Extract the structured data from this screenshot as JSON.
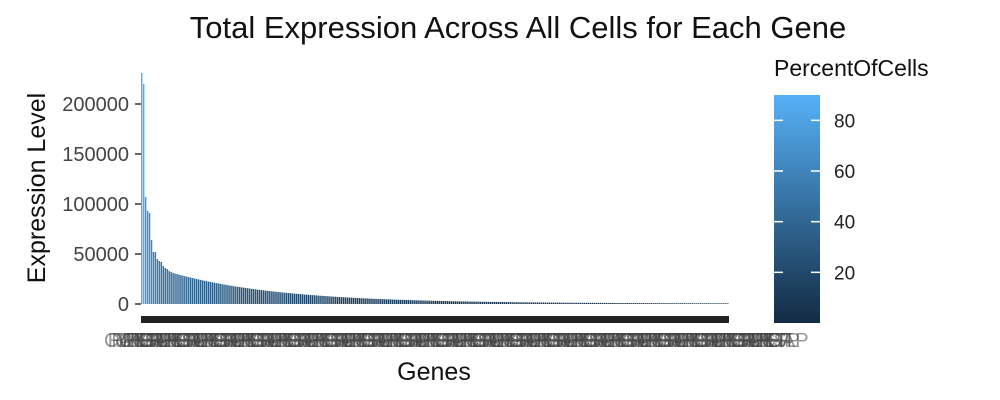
{
  "chart_data": {
    "type": "bar",
    "title": "Total Expression Across All Cells for Each Gene",
    "xlabel": "Genes",
    "ylabel": "Expression Level",
    "ylim": [
      0,
      232000
    ],
    "y_ticks": [
      0,
      50000,
      100000,
      150000,
      200000
    ],
    "y_tick_labels": [
      "0",
      "50000",
      "100000",
      "150000",
      "200000"
    ],
    "grid": false,
    "sorted": "descending",
    "n_genes": 300,
    "x_tick_labels": "overlapping, illegible",
    "leading_values": [
      231000,
      220000,
      107000,
      93000,
      91000,
      64000,
      52000,
      52000,
      45000,
      43000,
      42000,
      38000,
      36000,
      35000,
      33000,
      32000
    ],
    "leading_percent": [
      88,
      86,
      72,
      68,
      66,
      62,
      58,
      56,
      54,
      52,
      50,
      48,
      46,
      45,
      44,
      43
    ],
    "tail_model": "exponential decay from ~31000 toward ~500",
    "fill_scale": {
      "name": "PercentOfCells",
      "low_color": "#132b43",
      "high_color": "#56b1f7",
      "min": 0,
      "max": 90,
      "breaks": [
        20,
        40,
        60,
        80
      ],
      "break_labels": [
        "20",
        "40",
        "60",
        "80"
      ],
      "legend_position": "right"
    }
  }
}
